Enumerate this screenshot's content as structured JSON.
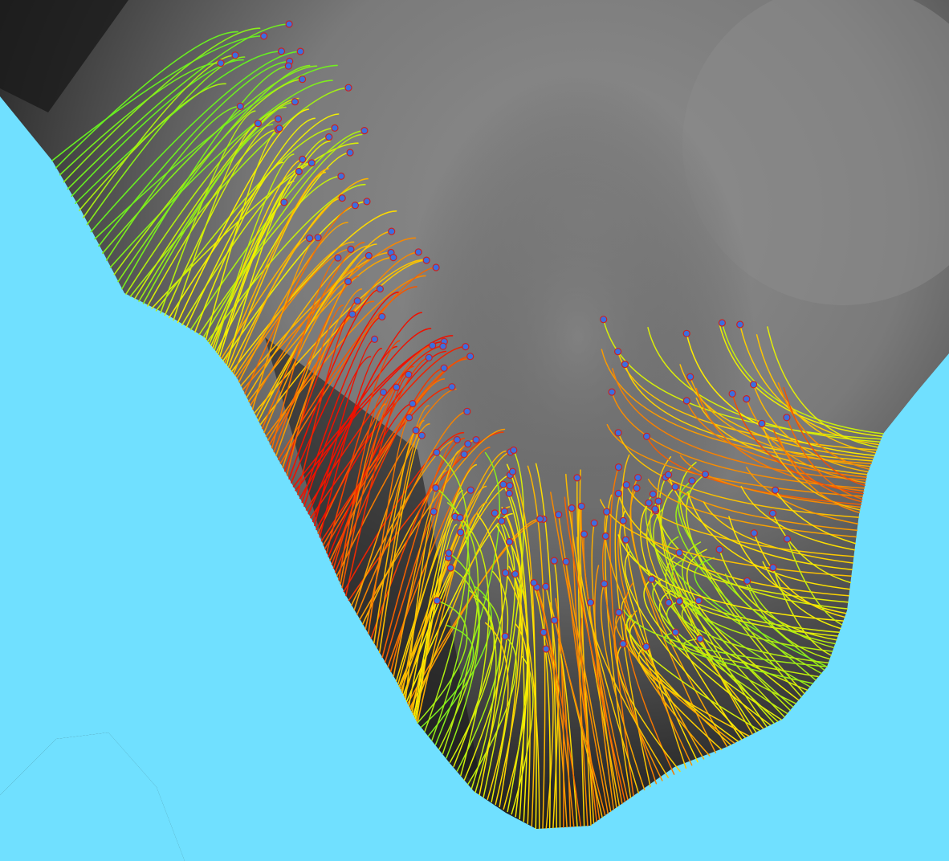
{
  "colors": {
    "water": "#70E0FF",
    "terrain_high": "#8A8A8A",
    "terrain_low": "#101010",
    "flow_low": "#66EE22",
    "flow_mid": "#FFEE00",
    "flow_high": "#EE1100",
    "source_point_fill": "#3B6FE0",
    "source_point_stroke": "#CC2222"
  },
  "icons": {
    "source_point": "dot-icon",
    "flow_line": "curve-icon"
  },
  "layers": {
    "elevation": "hillshade-terrain",
    "water": "water-polygons",
    "flows": "flow-paths",
    "sources": "source-points"
  }
}
